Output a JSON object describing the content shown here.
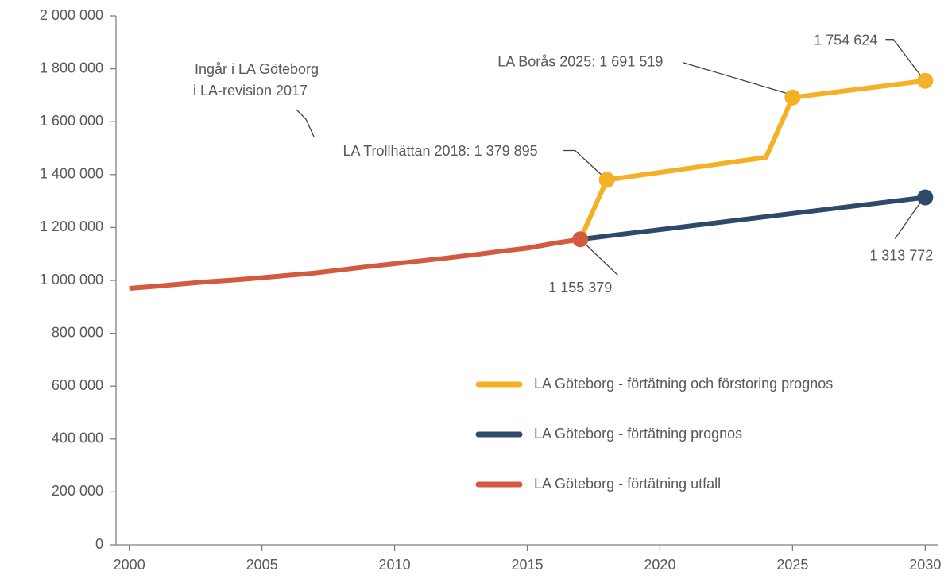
{
  "chart_data": {
    "type": "line",
    "xlim": [
      1999.5,
      2030.5
    ],
    "xticks": [
      2000,
      2005,
      2010,
      2015,
      2020,
      2025,
      2030
    ],
    "ylim": [
      0,
      2000000
    ],
    "yticks": [
      {
        "value": 0,
        "label": "0"
      },
      {
        "value": 200000,
        "label": "200 000"
      },
      {
        "value": 400000,
        "label": "400 000"
      },
      {
        "value": 600000,
        "label": "600 000"
      },
      {
        "value": 800000,
        "label": "800 000"
      },
      {
        "value": 1000000,
        "label": "1 000 000"
      },
      {
        "value": 1200000,
        "label": "1 200 000"
      },
      {
        "value": 1400000,
        "label": "1 400 000"
      },
      {
        "value": 1600000,
        "label": "1 600 000"
      },
      {
        "value": 1800000,
        "label": "1 800 000"
      },
      {
        "value": 2000000,
        "label": "2 000 000"
      }
    ],
    "legend": "lower right",
    "annotations": [
      "Ingår i LA Göteborg",
      "i LA-revision 2017"
    ],
    "series": [
      {
        "name": "LA Göteborg - förtätning och förstoring prognos",
        "color": "#f5b125",
        "x": [
          2017,
          2018,
          2024,
          2025,
          2030
        ],
        "values": [
          1155379,
          1379895,
          1465000,
          1691519,
          1754624
        ],
        "value_labels": [
          null,
          "LA Trollhättan 2018: 1 379 895",
          null,
          "LA Borås 2025: 1 691 519",
          "1 754 624"
        ]
      },
      {
        "name": "LA Göteborg - förtätning prognos",
        "color": "#2e4a6b",
        "x": [
          2017,
          2030
        ],
        "values": [
          1155379,
          1313772
        ],
        "value_labels": [
          null,
          "1 313 772"
        ]
      },
      {
        "name": "LA Göteborg - förtätning utfall",
        "color": "#d35a3f",
        "x": [
          2000,
          2001,
          2002,
          2003,
          2004,
          2005,
          2006,
          2007,
          2008,
          2009,
          2010,
          2011,
          2012,
          2013,
          2014,
          2015,
          2016,
          2017
        ],
        "values": [
          970000,
          978000,
          987000,
          995000,
          1002000,
          1010000,
          1019000,
          1028000,
          1040000,
          1052000,
          1063000,
          1074000,
          1085000,
          1097000,
          1110000,
          1122000,
          1140000,
          1155379
        ],
        "value_labels": [
          null,
          null,
          null,
          null,
          null,
          null,
          null,
          null,
          null,
          null,
          null,
          null,
          null,
          null,
          null,
          null,
          null,
          "1 155 379"
        ]
      }
    ]
  }
}
